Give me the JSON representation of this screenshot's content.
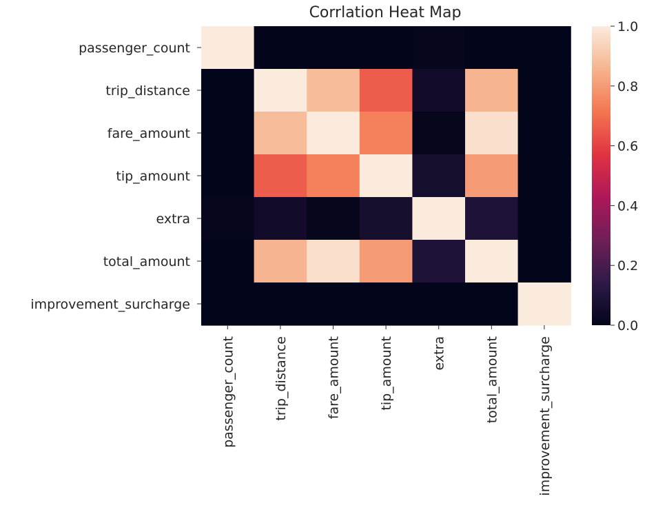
{
  "chart_data": {
    "type": "heatmap",
    "title": "Corrlation Heat Map",
    "rows": [
      "passenger_count",
      "trip_distance",
      "fare_amount",
      "tip_amount",
      "extra",
      "total_amount",
      "improvement_surcharge"
    ],
    "columns": [
      "passenger_count",
      "trip_distance",
      "fare_amount",
      "tip_amount",
      "extra",
      "total_amount",
      "improvement_surcharge"
    ],
    "values": [
      [
        1.0,
        0.0,
        0.0,
        0.0,
        0.01,
        0.0,
        0.0
      ],
      [
        0.0,
        1.0,
        0.88,
        0.66,
        0.05,
        0.86,
        0.0
      ],
      [
        0.0,
        0.88,
        1.0,
        0.74,
        0.01,
        0.97,
        0.0
      ],
      [
        0.0,
        0.66,
        0.74,
        1.0,
        0.06,
        0.8,
        0.0
      ],
      [
        0.01,
        0.05,
        0.01,
        0.06,
        1.0,
        0.09,
        0.0
      ],
      [
        0.0,
        0.86,
        0.97,
        0.8,
        0.09,
        1.0,
        0.0
      ],
      [
        0.0,
        0.0,
        0.0,
        0.0,
        0.0,
        0.0,
        1.0
      ]
    ],
    "colorbar": {
      "range": [
        0.0,
        1.0
      ],
      "ticks": [
        0.0,
        0.2,
        0.4,
        0.6,
        0.8,
        1.0
      ],
      "tick_labels": [
        "0.0",
        "0.2",
        "0.4",
        "0.6",
        "0.8",
        "1.0"
      ],
      "colormap": "rocket",
      "colormap_stops": [
        "#03051a",
        "#2e1a48",
        "#701f57",
        "#ae1759",
        "#e13342",
        "#f37651",
        "#f6b48e",
        "#faebdd"
      ]
    },
    "grid": false
  }
}
